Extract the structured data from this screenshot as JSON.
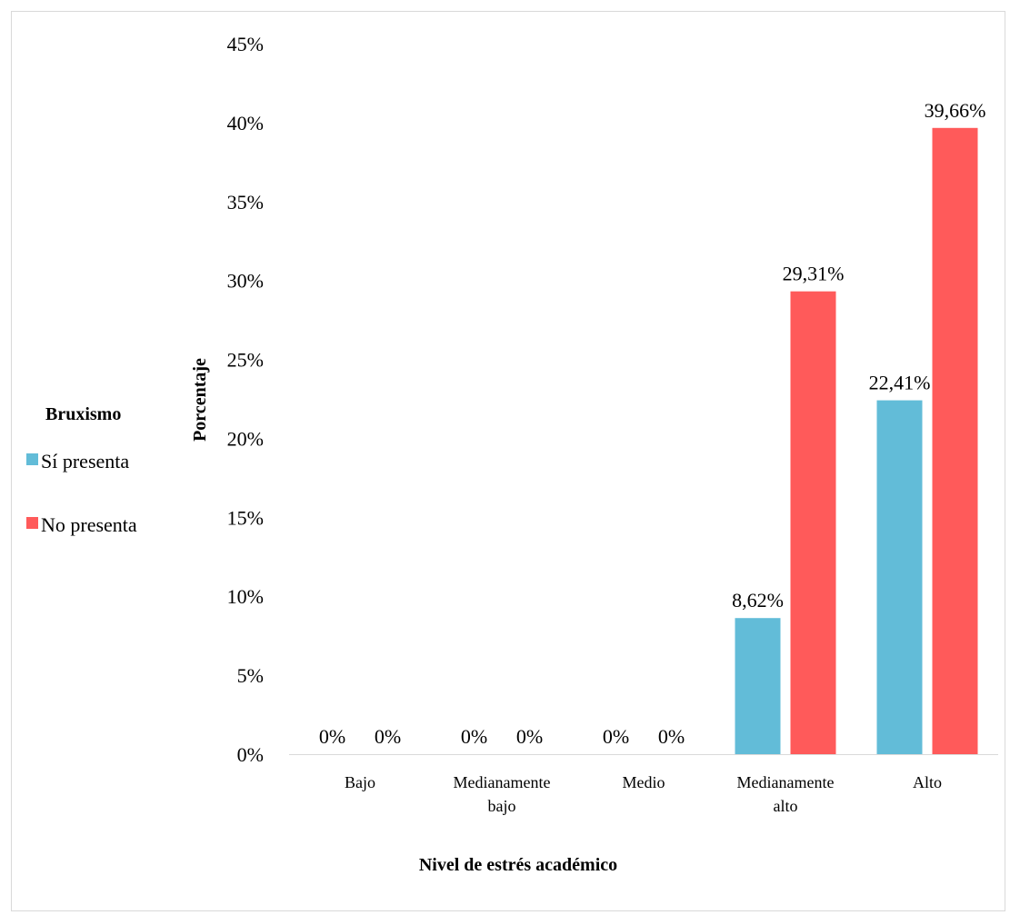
{
  "chart_data": {
    "type": "bar",
    "title": "",
    "xlabel": "Nivel de estrés académico",
    "ylabel": "Porcentaje",
    "ylim": [
      0,
      45
    ],
    "yticks": [
      0,
      5,
      10,
      15,
      20,
      25,
      30,
      35,
      40,
      45
    ],
    "ytick_labels": [
      "0%",
      "5%",
      "10%",
      "15%",
      "20%",
      "25%",
      "30%",
      "35%",
      "40%",
      "45%"
    ],
    "categories": [
      "Bajo",
      "Medianamente bajo",
      "Medio",
      "Medianamente alto",
      "Alto"
    ],
    "category_lines": [
      [
        "Bajo"
      ],
      [
        "Medianamente",
        "bajo"
      ],
      [
        "Medio"
      ],
      [
        "Medianamente",
        "alto"
      ],
      [
        "Alto"
      ]
    ],
    "grid": false,
    "legend_title": "Bruxismo",
    "legend_position": "left",
    "series": [
      {
        "name": "Sí presenta",
        "color": "#62BCD8",
        "values": [
          0,
          0,
          0,
          8.62,
          22.41
        ],
        "labels": [
          "0%",
          "0%",
          "0%",
          "8,62%",
          "22,41%"
        ]
      },
      {
        "name": "No presenta",
        "color": "#FF5A5A",
        "values": [
          0,
          0,
          0,
          29.31,
          39.66
        ],
        "labels": [
          "0%",
          "0%",
          "0%",
          "29,31%",
          "39,66%"
        ]
      }
    ]
  }
}
